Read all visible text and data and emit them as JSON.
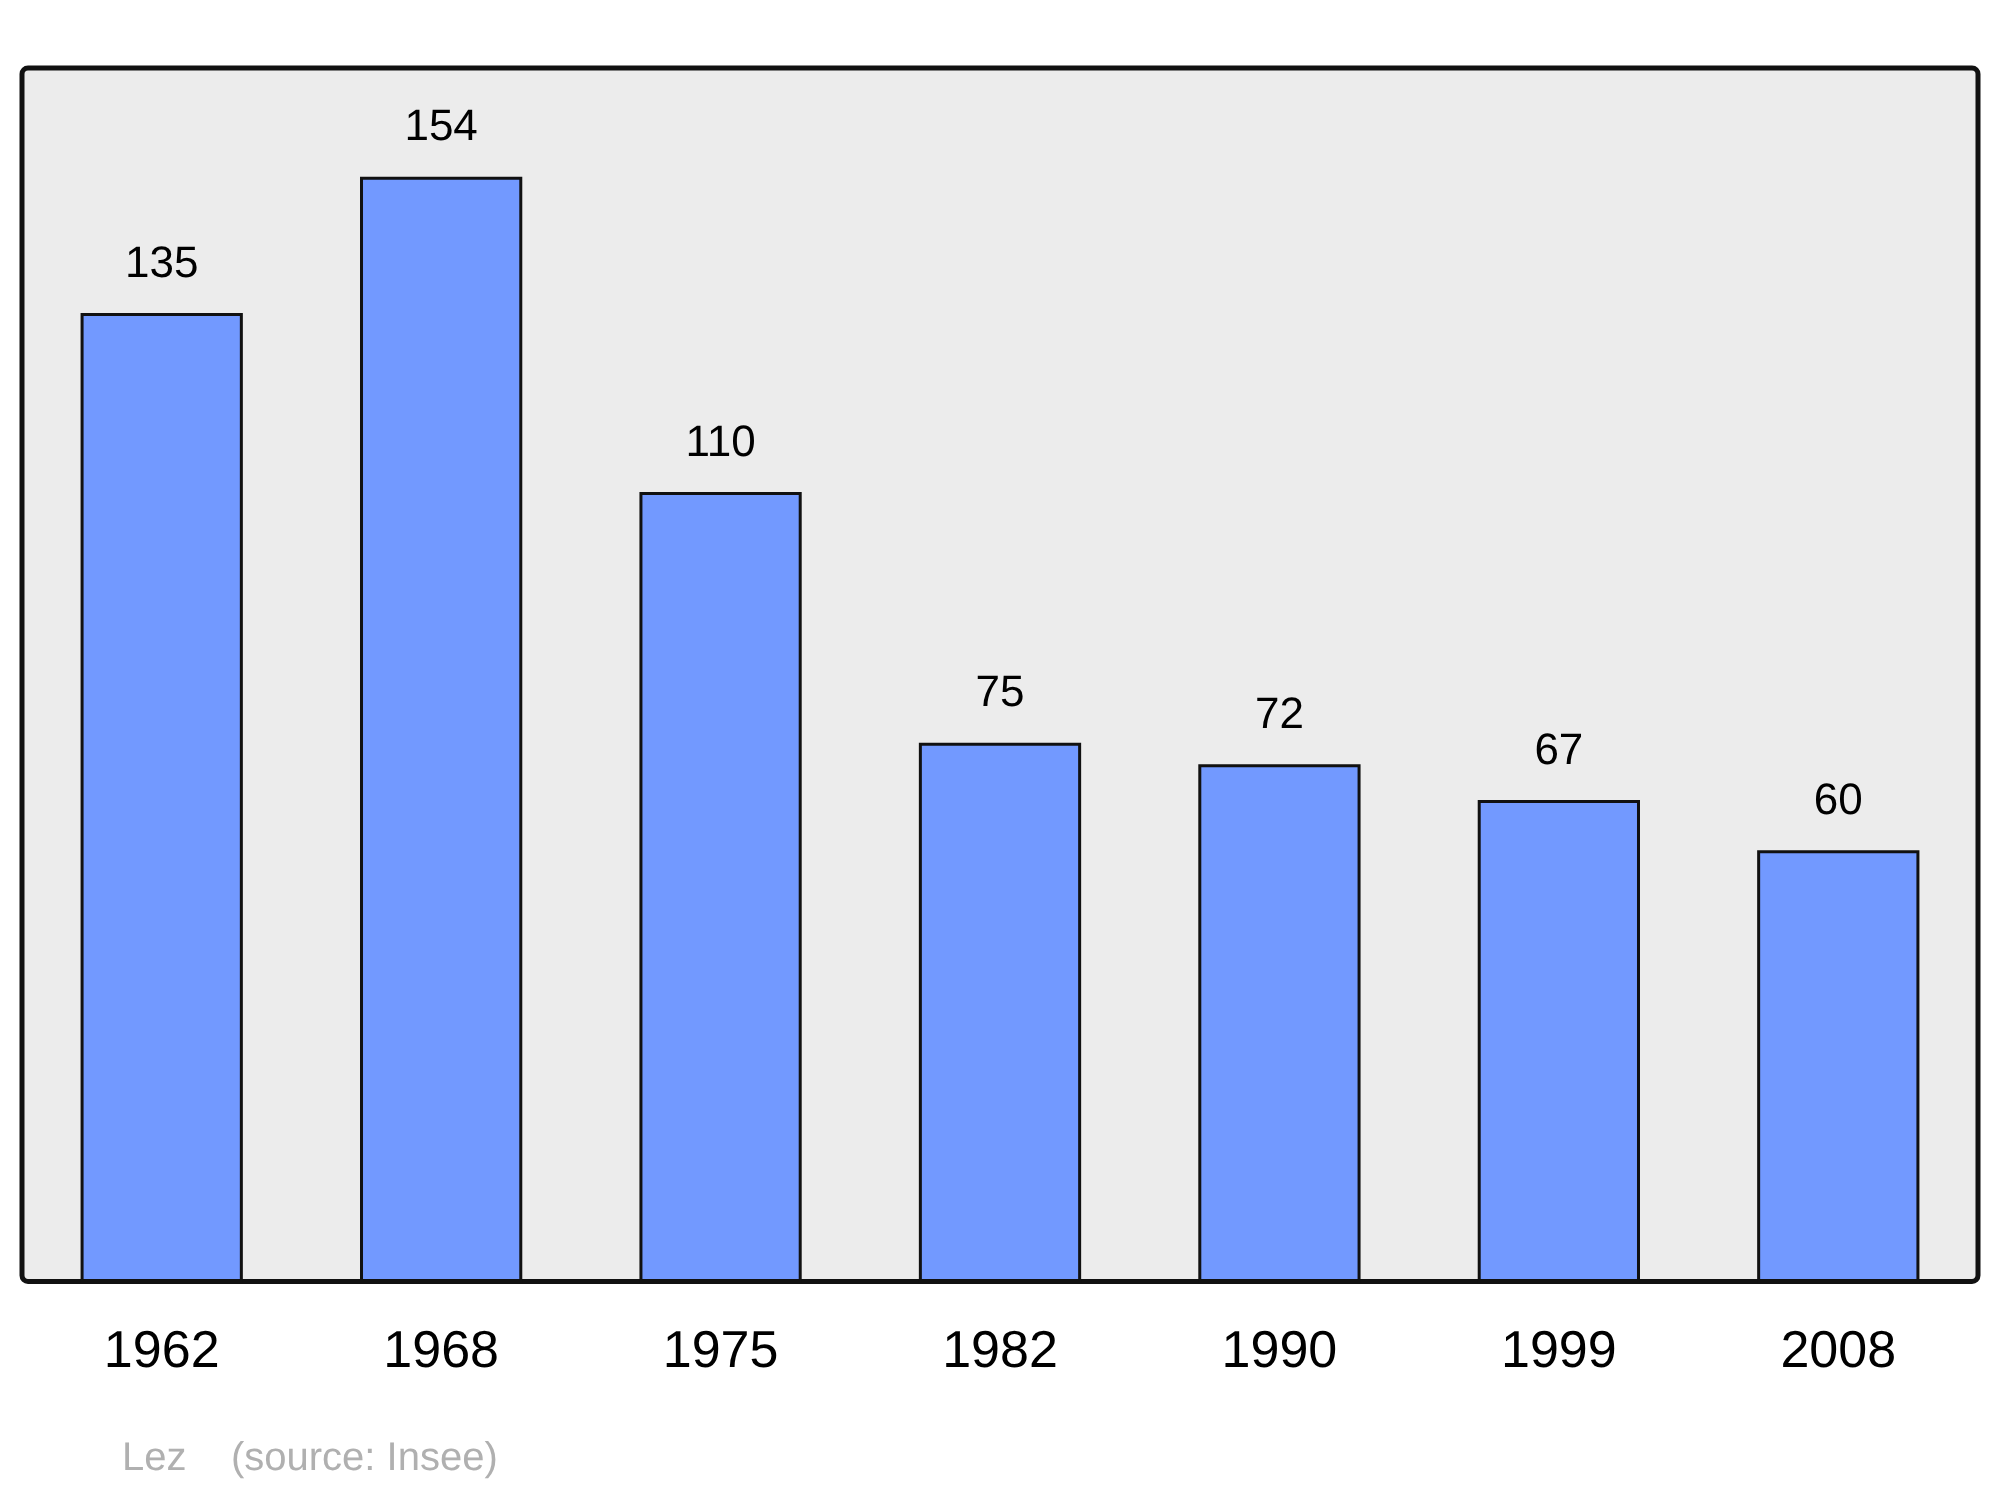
{
  "chart_data": {
    "type": "bar",
    "categories": [
      "1962",
      "1968",
      "1975",
      "1982",
      "1990",
      "1999",
      "2008"
    ],
    "values": [
      135,
      154,
      110,
      75,
      72,
      67,
      60
    ],
    "color": "#7299ff",
    "data_labels": true,
    "grid": false,
    "legend": false,
    "tick_labels": "x",
    "annotations": [
      "Lez    (source: Insee)"
    ]
  }
}
